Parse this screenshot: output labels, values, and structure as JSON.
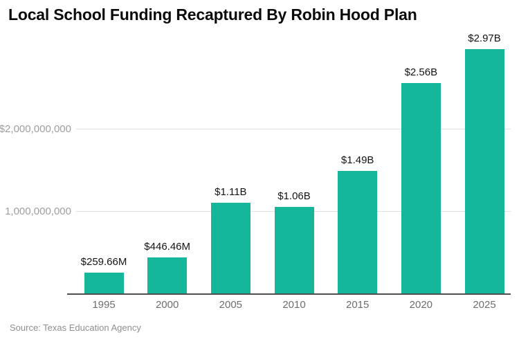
{
  "title": "Local School Funding Recaptured By Robin Hood Plan",
  "source": "Source: Texas Education Agency",
  "colors": {
    "bar": "#14b79a",
    "axis_line": "#4e4e4e",
    "gridline": "#e1e1e1",
    "value_label": "#141414",
    "x_tick_label": "#6d6d6d",
    "y_tick_label": "#9e9e9e",
    "title": "#0b0b0b",
    "source": "#8e8e8e",
    "background": "#ffffff"
  },
  "chart_data": {
    "type": "bar",
    "title": "Local School Funding Recaptured By Robin Hood Plan",
    "source": "Source: Texas Education Agency",
    "categories": [
      "1995",
      "2000",
      "2005",
      "2010",
      "2015",
      "2020",
      "2025"
    ],
    "values": [
      259660000,
      446460000,
      1110000000,
      1060000000,
      1490000000,
      2560000000,
      2970000000
    ],
    "value_labels": [
      "$259.66M",
      "$446.46M",
      "$1.11B",
      "$1.06B",
      "$1.49B",
      "$2.56B",
      "$2.97B"
    ],
    "xlabel": "",
    "ylabel": "",
    "ylim": [
      0,
      3200000000
    ],
    "y_ticks": [
      {
        "value": 1000000000,
        "label": "1,000,000,000"
      },
      {
        "value": 2000000000,
        "label": "$2,000,000,000"
      }
    ],
    "grid": "horizontal-only",
    "legend": "none",
    "bar_color": "#14b79a"
  }
}
